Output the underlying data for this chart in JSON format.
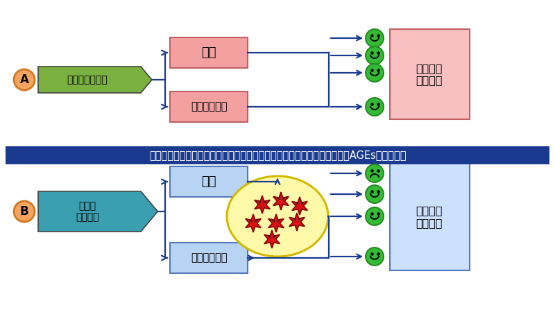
{
  "bg_color": "#ffffff",
  "banner_color": "#1a3a8f",
  "banner_text": "インシュリンが処理できなかった糖質がタンパク質と結びつき、老化物質AGEsを作り出す",
  "banner_text_color": "#ffffff",
  "banner_fontsize": 10.5,
  "A_circle_fill": "#f5a560",
  "A_circle_edge": "#d07820",
  "A_arrow_fill": "#7ab040",
  "A_arrow_text": "適量の炭水化物",
  "A_box_fill": "#f4a0a0",
  "A_box_edge": "#c06060",
  "A_box1": "肝臓",
  "A_box2": "インシュリン",
  "A_dest_fill": "#f8c0c0",
  "A_dest_edge": "#c06060",
  "A_dest_text": "血液経由\nで細胞へ",
  "B_circle_fill": "#f5a560",
  "B_circle_edge": "#d07820",
  "B_arrow_fill": "#3a9fb0",
  "B_arrow_text": "多量の\n炭水化物",
  "B_box_fill": "#b8d4f4",
  "B_box_edge": "#5577bb",
  "B_box1": "肝臓",
  "B_box2": "インシュリン",
  "B_dest_fill": "#cce0ff",
  "B_dest_edge": "#5577bb",
  "B_dest_text": "血液経由\nで細胞へ",
  "B_ellipse_fill": "#fffaaa",
  "B_ellipse_edge": "#d4b800",
  "B_star_fill": "#dd1111",
  "B_star_edge": "#880000",
  "line_color": "#1a3a8f",
  "face_color": "#33bb33",
  "face_edge": "#228822"
}
